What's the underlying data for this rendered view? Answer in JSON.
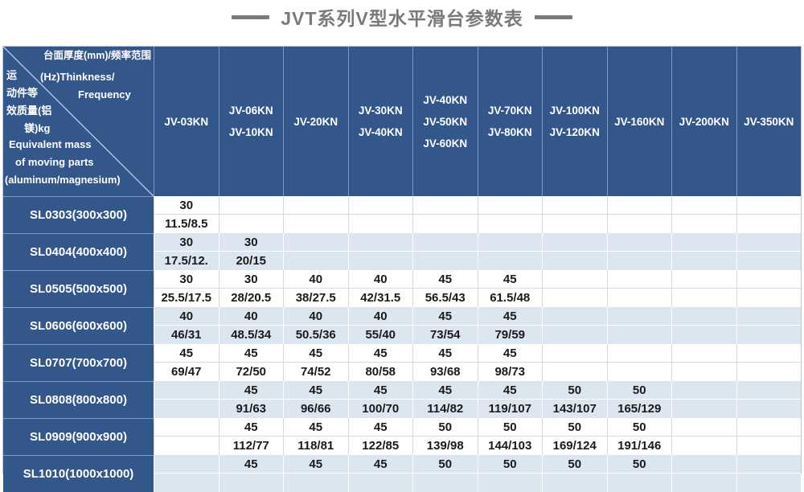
{
  "title": "JVT系列V型水平滑台参数表",
  "colors": {
    "header_blue": "#33568b",
    "row_alt_blue": "#dce6f1",
    "row_white": "#ffffff",
    "title_gray": "#7a7a7a",
    "grid_line_white_row": "#d9d9d9",
    "data_text": "#1a1a1a"
  },
  "table": {
    "corner": {
      "top_label_cn": "台面厚度(mm)/频率范围",
      "top_label_en1": "(Hz)Thinkness/",
      "top_label_en2": "Frequency",
      "side_label_cn1": "运",
      "side_label_cn2": "动件等",
      "side_label_cn3": "效质量(铝",
      "side_label_cn4": "镁)kg",
      "side_label_en1": "Equivalent mass",
      "side_label_en2": "of moving parts",
      "side_label_en3": "(aluminum/magnesium)"
    },
    "columns": [
      {
        "lines": [
          "JV-03KN"
        ]
      },
      {
        "lines": [
          "JV-06KN",
          "JV-10KN"
        ]
      },
      {
        "lines": [
          "JV-20KN"
        ]
      },
      {
        "lines": [
          "JV-30KN",
          "JV-40KN"
        ]
      },
      {
        "lines": [
          "JV-40KN",
          "JV-50KN",
          "JV-60KN"
        ]
      },
      {
        "lines": [
          "JV-70KN",
          "JV-80KN"
        ]
      },
      {
        "lines": [
          "JV-100KN",
          "JV-120KN"
        ]
      },
      {
        "lines": [
          "JV-160KN"
        ]
      },
      {
        "lines": [
          "JV-200KN"
        ]
      },
      {
        "lines": [
          "JV-350KN"
        ]
      }
    ],
    "rows": [
      {
        "label": "SL0303(300x300)",
        "cells": [
          [
            "30",
            "11.5/8.5"
          ],
          [
            "",
            ""
          ],
          [
            "",
            ""
          ],
          [
            "",
            ""
          ],
          [
            "",
            ""
          ],
          [
            "",
            ""
          ],
          [
            "",
            ""
          ],
          [
            "",
            ""
          ],
          [
            "",
            ""
          ],
          [
            "",
            ""
          ]
        ]
      },
      {
        "label": "SL0404(400x400)",
        "cells": [
          [
            "30",
            "17.5/12."
          ],
          [
            "30",
            "20/15"
          ],
          [
            "",
            ""
          ],
          [
            "",
            ""
          ],
          [
            "",
            ""
          ],
          [
            "",
            ""
          ],
          [
            "",
            ""
          ],
          [
            "",
            ""
          ],
          [
            "",
            ""
          ],
          [
            "",
            ""
          ]
        ]
      },
      {
        "label": "SL0505(500x500)",
        "cells": [
          [
            "30",
            "25.5/17.5"
          ],
          [
            "30",
            "28/20.5"
          ],
          [
            "40",
            "38/27.5"
          ],
          [
            "40",
            "42/31.5"
          ],
          [
            "45",
            "56.5/43"
          ],
          [
            "45",
            "61.5/48"
          ],
          [
            "",
            ""
          ],
          [
            "",
            ""
          ],
          [
            "",
            ""
          ],
          [
            "",
            ""
          ]
        ]
      },
      {
        "label": "SL0606(600x600)",
        "cells": [
          [
            "40",
            "46/31"
          ],
          [
            "40",
            "48.5/34"
          ],
          [
            "40",
            "50.5/36"
          ],
          [
            "40",
            "55/40"
          ],
          [
            "45",
            "73/54"
          ],
          [
            "45",
            "79/59"
          ],
          [
            "",
            ""
          ],
          [
            "",
            ""
          ],
          [
            "",
            ""
          ],
          [
            "",
            ""
          ]
        ]
      },
      {
        "label": "SL0707(700x700)",
        "cells": [
          [
            "45",
            "69/47"
          ],
          [
            "45",
            "72/50"
          ],
          [
            "45",
            "74/52"
          ],
          [
            "45",
            "80/58"
          ],
          [
            "45",
            "93/68"
          ],
          [
            "45",
            "98/73"
          ],
          [
            "",
            ""
          ],
          [
            "",
            ""
          ],
          [
            "",
            ""
          ],
          [
            "",
            ""
          ]
        ]
      },
      {
        "label": "SL0808(800x800)",
        "cells": [
          [
            "",
            ""
          ],
          [
            "45",
            "91/63"
          ],
          [
            "45",
            "96/66"
          ],
          [
            "45",
            "100/70"
          ],
          [
            "45",
            "114/82"
          ],
          [
            "45",
            "119/107"
          ],
          [
            "50",
            "143/107"
          ],
          [
            "50",
            "165/129"
          ],
          [
            "",
            ""
          ],
          [
            "",
            ""
          ]
        ]
      },
      {
        "label": "SL0909(900x900)",
        "cells": [
          [
            "",
            ""
          ],
          [
            "45",
            "112/77"
          ],
          [
            "45",
            "118/81"
          ],
          [
            "45",
            "122/85"
          ],
          [
            "50",
            "139/98"
          ],
          [
            "50",
            "144/103"
          ],
          [
            "50",
            "169/124"
          ],
          [
            "50",
            "191/146"
          ],
          [
            "",
            ""
          ],
          [
            "",
            ""
          ]
        ]
      },
      {
        "label": "SL1010(1000x1000)",
        "cells": [
          [
            "",
            ""
          ],
          [
            "45",
            ""
          ],
          [
            "45",
            ""
          ],
          [
            "45",
            ""
          ],
          [
            "50",
            ""
          ],
          [
            "50",
            ""
          ],
          [
            "50",
            ""
          ],
          [
            "50",
            ""
          ],
          [
            "",
            ""
          ],
          [
            "",
            ""
          ]
        ]
      }
    ]
  }
}
